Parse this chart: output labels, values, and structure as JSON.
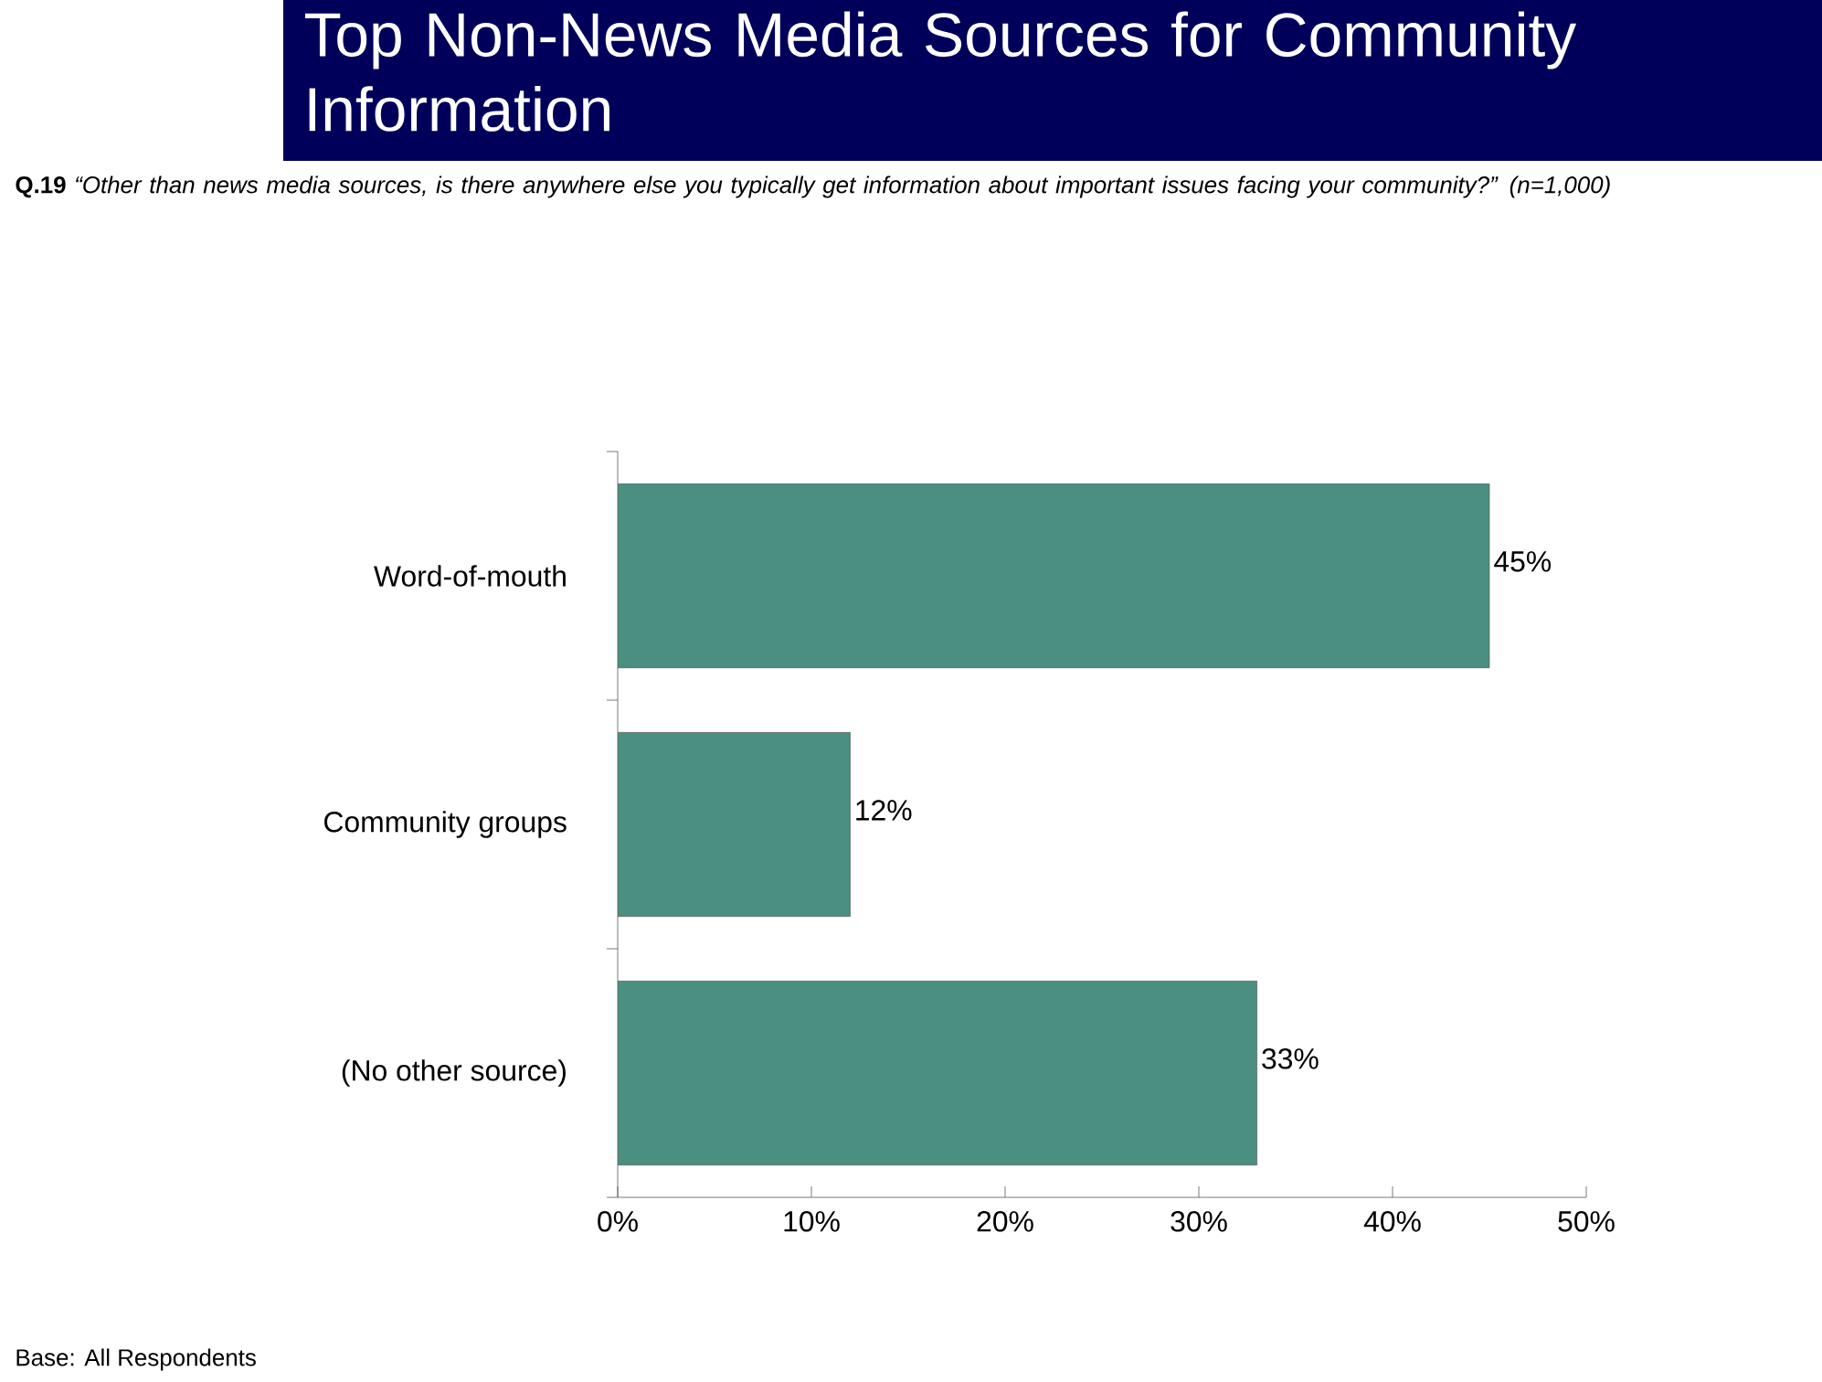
{
  "chart_data": {
    "type": "bar",
    "orientation": "horizontal",
    "title": "Top Non-News Media Sources for Community Information",
    "subtitle": "**Q.19** *“Other than news media sources, is there anywhere else you typically get information about important issues facing your community?” (n=1,000)*",
    "categories": [
      "Word-of-mouth",
      "Community groups",
      "(No other source)"
    ],
    "values": [
      45,
      12,
      33
    ],
    "value_labels": [
      "45%",
      "12%",
      "33%"
    ],
    "color": "#4a8f7f",
    "xlim": [
      0,
      50
    ],
    "xticks": [
      {
        "value": 0,
        "label": "0%"
      },
      {
        "value": 10,
        "label": "10%"
      },
      {
        "value": 20,
        "label": "20%"
      },
      {
        "value": 30,
        "label": "30%"
      },
      {
        "value": 40,
        "label": "40%"
      },
      {
        "value": 50,
        "label": "50%"
      }
    ],
    "annotations": [
      "Base:  All Respondents"
    ]
  }
}
